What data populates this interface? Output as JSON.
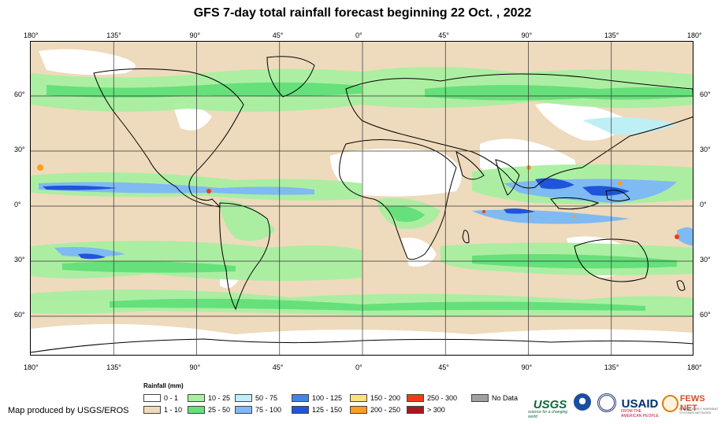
{
  "title": "GFS 7-day total rainfall forecast beginning 22 Oct. , 2022",
  "longitude_labels": [
    "180°",
    "135°",
    "90°",
    "45°",
    "0°",
    "45°",
    "90°",
    "135°",
    "180°"
  ],
  "latitude_labels": [
    "60°",
    "30°",
    "0°",
    "30°",
    "60°"
  ],
  "legend": {
    "title": "Rainfall (mm)",
    "items": [
      {
        "label": "0 - 1",
        "color": "#ffffff"
      },
      {
        "label": "1 - 10",
        "color": "#eedabc"
      },
      {
        "label": "10 - 25",
        "color": "#a8f0a0"
      },
      {
        "label": "25 - 50",
        "color": "#66e07a"
      },
      {
        "label": "50 - 75",
        "color": "#bdeff5"
      },
      {
        "label": "75 - 100",
        "color": "#7fbaf2"
      },
      {
        "label": "100 - 125",
        "color": "#3f86e8"
      },
      {
        "label": "125 - 150",
        "color": "#1f55d8"
      },
      {
        "label": "150 - 200",
        "color": "#ffe27a"
      },
      {
        "label": "200 - 250",
        "color": "#ff9e1a"
      },
      {
        "label": "250 - 300",
        "color": "#f03c14"
      },
      {
        "label": "> 300",
        "color": "#a01c1c"
      },
      {
        "label": "No Data",
        "color": "#a0a0a0"
      }
    ]
  },
  "credit": "Map produced by USGS/EROS",
  "logos": {
    "usgs": {
      "name": "USGS",
      "tagline": "science for a changing world"
    },
    "usaid": {
      "name": "USAID",
      "tagline": "FROM THE AMERICAN PEOPLE"
    },
    "fews": {
      "name": "FEWS NET",
      "tagline": "FAMINE EARLY WARNING SYSTEMS NETWORK"
    }
  },
  "colors": {
    "ocean_bg": "#eedabc",
    "coast": "#000000",
    "grid": "#333333"
  }
}
